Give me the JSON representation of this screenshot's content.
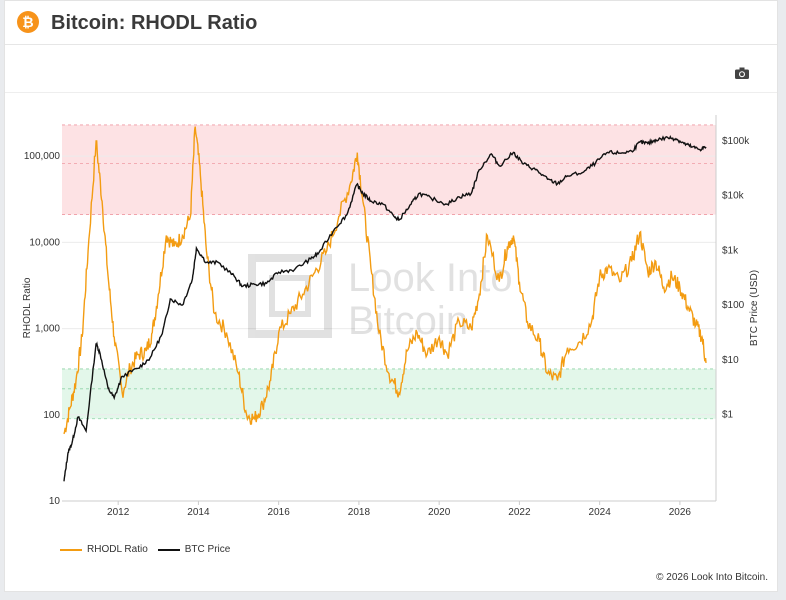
{
  "header": {
    "title": "Bitcoin: RHODL Ratio",
    "logo_icon": "bitcoin-icon",
    "logo_symbol": "₿"
  },
  "toolbar": {
    "camera_icon": "camera-icon"
  },
  "watermark": {
    "line1": "Look Into",
    "line2": "Bitcoin"
  },
  "footer": {
    "copyright": "© 2026 Look Into Bitcoin."
  },
  "legend": {
    "rhodl": "RHODL Ratio",
    "btc": "BTC Price"
  },
  "colors": {
    "rhodl": "#f39c12",
    "btc": "#111111",
    "red_band": "#fde2e4",
    "green_band": "#e3f7ea"
  },
  "chart_data": {
    "type": "line",
    "ylabel_left": "RHODL Ratio",
    "ylabel_right": "BTC Price (USD)",
    "x_ticks": [
      "2012",
      "2014",
      "2016",
      "2018",
      "2020",
      "2022",
      "2024",
      "2026"
    ],
    "left_ticks": [
      "10",
      "100",
      "1,000",
      "10,000",
      "100,000"
    ],
    "right_ticks": [
      "$1",
      "$10",
      "$100",
      "$1k",
      "$10k",
      "$100k"
    ],
    "left_log_range": [
      10,
      300000
    ],
    "x_range": [
      2010.6,
      2026.9
    ],
    "red_band_rhodl": [
      21000,
      230000
    ],
    "green_band_rhodl": [
      90,
      340
    ],
    "series": [
      {
        "name": "RHODL Ratio",
        "x": [
          2010.65,
          2010.8,
          2010.95,
          2011.1,
          2011.25,
          2011.45,
          2011.6,
          2011.75,
          2011.9,
          2012.1,
          2012.3,
          2012.5,
          2012.7,
          2012.85,
          2013.0,
          2013.2,
          2013.4,
          2013.6,
          2013.8,
          2013.92,
          2014.05,
          2014.2,
          2014.4,
          2014.7,
          2015.0,
          2015.2,
          2015.4,
          2015.6,
          2015.8,
          2016.0,
          2016.3,
          2016.6,
          2016.9,
          2017.2,
          2017.5,
          2017.8,
          2017.96,
          2018.1,
          2018.3,
          2018.5,
          2018.75,
          2019.0,
          2019.2,
          2019.45,
          2019.7,
          2020.0,
          2020.2,
          2020.5,
          2020.8,
          2021.0,
          2021.2,
          2021.5,
          2021.7,
          2021.85,
          2022.0,
          2022.2,
          2022.5,
          2022.7,
          2022.95,
          2023.2,
          2023.5,
          2023.8,
          2024.0,
          2024.2,
          2024.5,
          2024.8,
          2025.0,
          2025.2,
          2025.4,
          2025.6,
          2025.8,
          2026.0,
          2026.2,
          2026.4,
          2026.55,
          2026.65
        ],
        "values": [
          60,
          120,
          250,
          800,
          8000,
          150000,
          30000,
          4000,
          800,
          180,
          350,
          500,
          550,
          900,
          2500,
          12000,
          9000,
          12000,
          20000,
          220000,
          60000,
          8000,
          1500,
          900,
          300,
          100,
          90,
          130,
          250,
          900,
          1500,
          2500,
          4500,
          8000,
          20000,
          50000,
          110000,
          30000,
          5000,
          900,
          300,
          180,
          550,
          900,
          500,
          800,
          500,
          1200,
          1000,
          2500,
          12000,
          3500,
          9000,
          12000,
          3500,
          1200,
          700,
          300,
          250,
          600,
          700,
          1200,
          4000,
          5000,
          3500,
          6000,
          13000,
          4500,
          6000,
          3000,
          4000,
          3000,
          1800,
          1100,
          800,
          400
        ]
      },
      {
        "name": "BTC Price",
        "x": [
          2010.65,
          2010.75,
          2010.85,
          2011.0,
          2011.2,
          2011.45,
          2011.55,
          2011.75,
          2011.9,
          2012.1,
          2012.5,
          2012.8,
          2013.1,
          2013.3,
          2013.6,
          2013.85,
          2013.95,
          2014.2,
          2014.5,
          2014.9,
          2015.1,
          2015.4,
          2015.7,
          2016.0,
          2016.4,
          2016.8,
          2017.0,
          2017.4,
          2017.7,
          2017.95,
          2018.1,
          2018.3,
          2018.6,
          2018.9,
          2019.0,
          2019.3,
          2019.5,
          2019.8,
          2020.2,
          2020.5,
          2020.8,
          2021.0,
          2021.3,
          2021.5,
          2021.85,
          2022.1,
          2022.4,
          2022.7,
          2022.95,
          2023.2,
          2023.6,
          2023.9,
          2024.2,
          2024.5,
          2024.8,
          2025.0,
          2025.2,
          2025.4,
          2025.7,
          2025.9,
          2026.1,
          2026.3,
          2026.5,
          2026.65
        ],
        "values": [
          0.06,
          0.2,
          0.3,
          0.9,
          0.5,
          20,
          13,
          3,
          2,
          5,
          7,
          11,
          30,
          130,
          100,
          300,
          1100,
          600,
          600,
          330,
          220,
          240,
          250,
          400,
          450,
          700,
          900,
          2500,
          4500,
          16000,
          11000,
          8000,
          7000,
          4000,
          3600,
          7000,
          11000,
          9000,
          7000,
          9500,
          11000,
          30000,
          58000,
          35000,
          62000,
          38000,
          30000,
          20000,
          16500,
          23000,
          27000,
          40000,
          62000,
          60000,
          65000,
          95000,
          90000,
          105000,
          115000,
          110000,
          90000,
          78000,
          70000,
          78000
        ]
      }
    ]
  }
}
